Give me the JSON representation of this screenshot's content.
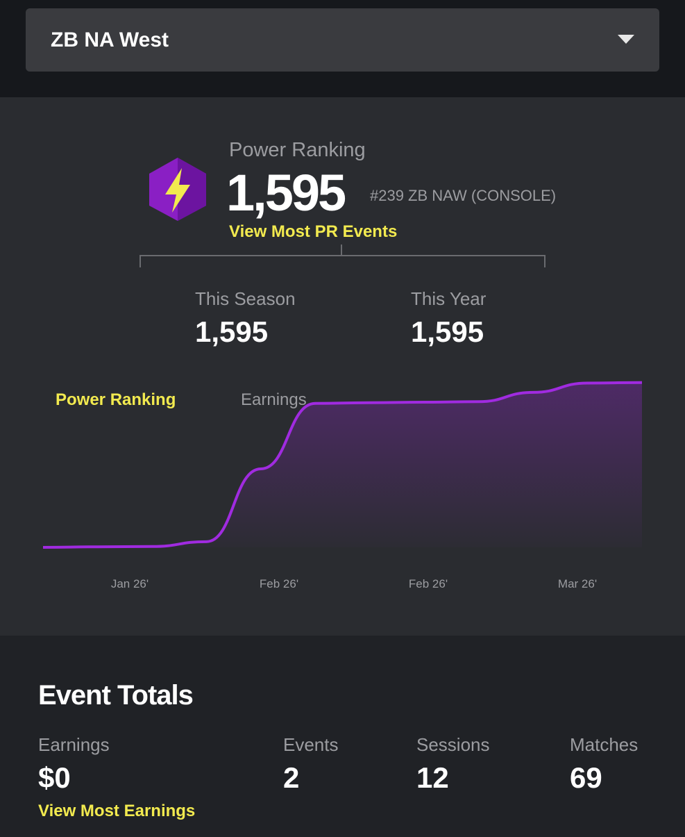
{
  "dropdown": {
    "selected": "ZB NA West"
  },
  "power_ranking": {
    "label": "Power Ranking",
    "value": "1,595",
    "rank": "#239 ZB NAW (CONSOLE)",
    "link": "View Most PR Events"
  },
  "totals": [
    {
      "label": "This Season",
      "value": "1,595"
    },
    {
      "label": "This Year",
      "value": "1,595"
    }
  ],
  "chart_tabs": [
    "Power Ranking",
    "Earnings"
  ],
  "chart_data": {
    "type": "area",
    "x_labels": [
      "Jan 26'",
      "Feb 26'",
      "Feb 26'",
      "Mar 26'"
    ],
    "values": [
      0,
      5,
      8,
      55,
      760,
      1393,
      1400,
      1405,
      1410,
      1500,
      1590,
      1595
    ],
    "color": "#a02be0",
    "ylim": [
      0,
      1600
    ]
  },
  "event_totals": {
    "title": "Event Totals",
    "stats": [
      {
        "label": "Earnings",
        "value": "$0"
      },
      {
        "label": "Events",
        "value": "2"
      },
      {
        "label": "Sessions",
        "value": "12"
      },
      {
        "label": "Matches",
        "value": "69"
      }
    ],
    "link": "View Most Earnings"
  }
}
